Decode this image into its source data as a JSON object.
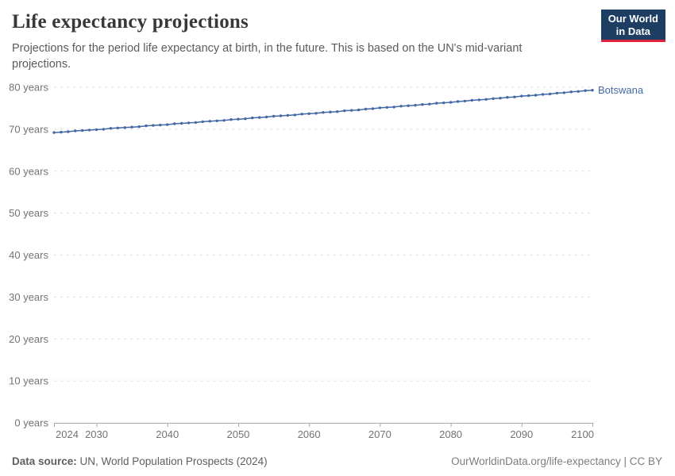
{
  "header": {
    "title": "Life expectancy projections",
    "subtitle": "Projections for the period life expectancy at birth, in the future. This is based on the UN's mid-variant projections.",
    "logo": {
      "line1": "Our World",
      "line2": "in Data",
      "bg_color": "#1d3d63",
      "accent_color": "#e0233c",
      "text_color": "#ffffff"
    }
  },
  "chart_data": {
    "type": "line",
    "title": "Life expectancy projections",
    "xlabel": "",
    "ylabel": "",
    "xlim": [
      2024,
      2100
    ],
    "ylim": [
      0,
      80
    ],
    "x_ticks": [
      2024,
      2030,
      2040,
      2050,
      2060,
      2070,
      2080,
      2090,
      2100
    ],
    "y_ticks": [
      0,
      10,
      20,
      30,
      40,
      50,
      60,
      70,
      80
    ],
    "y_tick_suffix": " years",
    "grid": "horizontal-dashed",
    "legend_position": "end-of-line-label",
    "grid_color": "#dcdcdc",
    "axis_color": "#a9a9a9",
    "tick_label_color": "#737373",
    "series": [
      {
        "name": "Botswana",
        "color": "#4268a5",
        "x": [
          2024,
          2025,
          2026,
          2027,
          2028,
          2029,
          2030,
          2031,
          2032,
          2033,
          2034,
          2035,
          2036,
          2037,
          2038,
          2039,
          2040,
          2041,
          2042,
          2043,
          2044,
          2045,
          2046,
          2047,
          2048,
          2049,
          2050,
          2051,
          2052,
          2053,
          2054,
          2055,
          2056,
          2057,
          2058,
          2059,
          2060,
          2061,
          2062,
          2063,
          2064,
          2065,
          2066,
          2067,
          2068,
          2069,
          2070,
          2071,
          2072,
          2073,
          2074,
          2075,
          2076,
          2077,
          2078,
          2079,
          2080,
          2081,
          2082,
          2083,
          2084,
          2085,
          2086,
          2087,
          2088,
          2089,
          2090,
          2091,
          2092,
          2093,
          2094,
          2095,
          2096,
          2097,
          2098,
          2099,
          2100
        ],
        "values": [
          69.2,
          69.3,
          69.4,
          69.6,
          69.7,
          69.8,
          69.9,
          70.0,
          70.2,
          70.3,
          70.4,
          70.5,
          70.6,
          70.8,
          70.9,
          71.0,
          71.1,
          71.3,
          71.4,
          71.5,
          71.6,
          71.8,
          71.9,
          72.0,
          72.1,
          72.3,
          72.4,
          72.5,
          72.7,
          72.8,
          72.9,
          73.1,
          73.2,
          73.3,
          73.4,
          73.6,
          73.7,
          73.8,
          74.0,
          74.1,
          74.2,
          74.4,
          74.5,
          74.6,
          74.8,
          74.9,
          75.1,
          75.2,
          75.3,
          75.5,
          75.6,
          75.7,
          75.9,
          76.0,
          76.2,
          76.3,
          76.4,
          76.6,
          76.7,
          76.9,
          77.0,
          77.1,
          77.3,
          77.4,
          77.6,
          77.7,
          77.9,
          78.0,
          78.1,
          78.3,
          78.4,
          78.6,
          78.7,
          78.9,
          79.0,
          79.2,
          79.3
        ]
      }
    ]
  },
  "footer": {
    "source_label": "Data source:",
    "source_text": " UN, World Population Prospects (2024)",
    "credit": "OurWorldinData.org/life-expectancy | CC BY"
  }
}
